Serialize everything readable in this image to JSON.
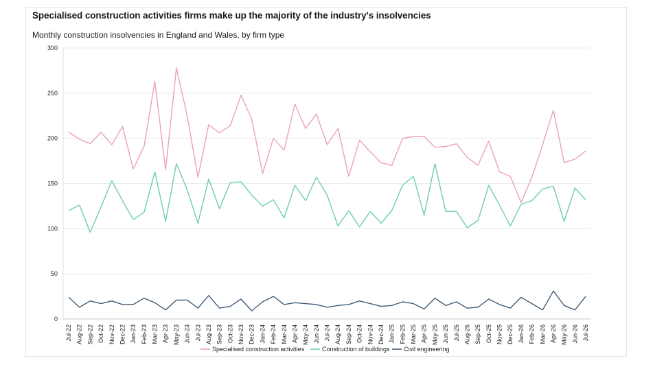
{
  "chart_data": {
    "type": "line",
    "title": "Specialised construction activities firms make up the majority of the industry's insolvencies",
    "subtitle": "Monthly construction insolvencies in England and Wales, by firm type",
    "xlabel": "",
    "ylabel": "",
    "ylim": [
      0,
      300
    ],
    "yticks": [
      0,
      50,
      100,
      150,
      200,
      250,
      300
    ],
    "grid": true,
    "legend": "bottom",
    "categories": [
      "Jul-22",
      "Aug-22",
      "Sep-22",
      "Oct-22",
      "Nov-22",
      "Dec-22",
      "Jan-23",
      "Feb-23",
      "Mar-23",
      "Apr-23",
      "May-23",
      "Jun-23",
      "Jul-23",
      "Aug-23",
      "Sep-23",
      "Oct-23",
      "Nov-23",
      "Dec-23",
      "Jan-24",
      "Feb-24",
      "Mar-24",
      "Apr-24",
      "May-24",
      "Jun-24",
      "Jul-24",
      "Aug-24",
      "Sep-24",
      "Oct-24",
      "Nov-24",
      "Dec-24",
      "Jan-25",
      "Feb-25",
      "Mar-25",
      "Apr-25",
      "May-25",
      "Jun-25",
      "Jul-25",
      "Aug-25",
      "Sep-25",
      "Oct-25",
      "Nov-25",
      "Dec-25",
      "Jan-26",
      "Feb-26",
      "Mar-26",
      "Apr-26",
      "May-26",
      "Jun-26",
      "Jul-26"
    ],
    "series": [
      {
        "name": "Specialised construction activities",
        "color": "#e8a2b6",
        "values": [
          207,
          199,
          194,
          207,
          193,
          213,
          166,
          191,
          263,
          165,
          278,
          225,
          157,
          215,
          206,
          214,
          248,
          221,
          161,
          200,
          187,
          238,
          211,
          227,
          193,
          211,
          158,
          198,
          185,
          173,
          170,
          200,
          202,
          202,
          190,
          191,
          194,
          179,
          170,
          197,
          163,
          158,
          129,
          157,
          193,
          231,
          173,
          177,
          186
        ]
      },
      {
        "name": "Construction of buildings",
        "color": "#6dcfa9",
        "values": [
          120,
          126,
          96,
          124,
          153,
          131,
          110,
          118,
          163,
          108,
          172,
          143,
          106,
          155,
          122,
          151,
          152,
          137,
          125,
          132,
          112,
          148,
          131,
          157,
          137,
          103,
          120,
          102,
          119,
          106,
          120,
          148,
          158,
          115,
          172,
          119,
          119,
          101,
          109,
          148,
          126,
          103,
          127,
          131,
          144,
          147,
          108,
          145,
          132
        ]
      },
      {
        "name": "Civil engineering",
        "color": "#3f5c7a",
        "values": [
          24,
          13,
          20,
          17,
          20,
          16,
          16,
          23,
          18,
          10,
          21,
          21,
          12,
          26,
          12,
          14,
          22,
          9,
          19,
          25,
          16,
          18,
          17,
          16,
          13,
          15,
          16,
          20,
          17,
          14,
          15,
          19,
          17,
          11,
          23,
          15,
          19,
          12,
          13,
          22,
          16,
          12,
          24,
          17,
          10,
          31,
          15,
          10,
          25
        ]
      }
    ]
  }
}
